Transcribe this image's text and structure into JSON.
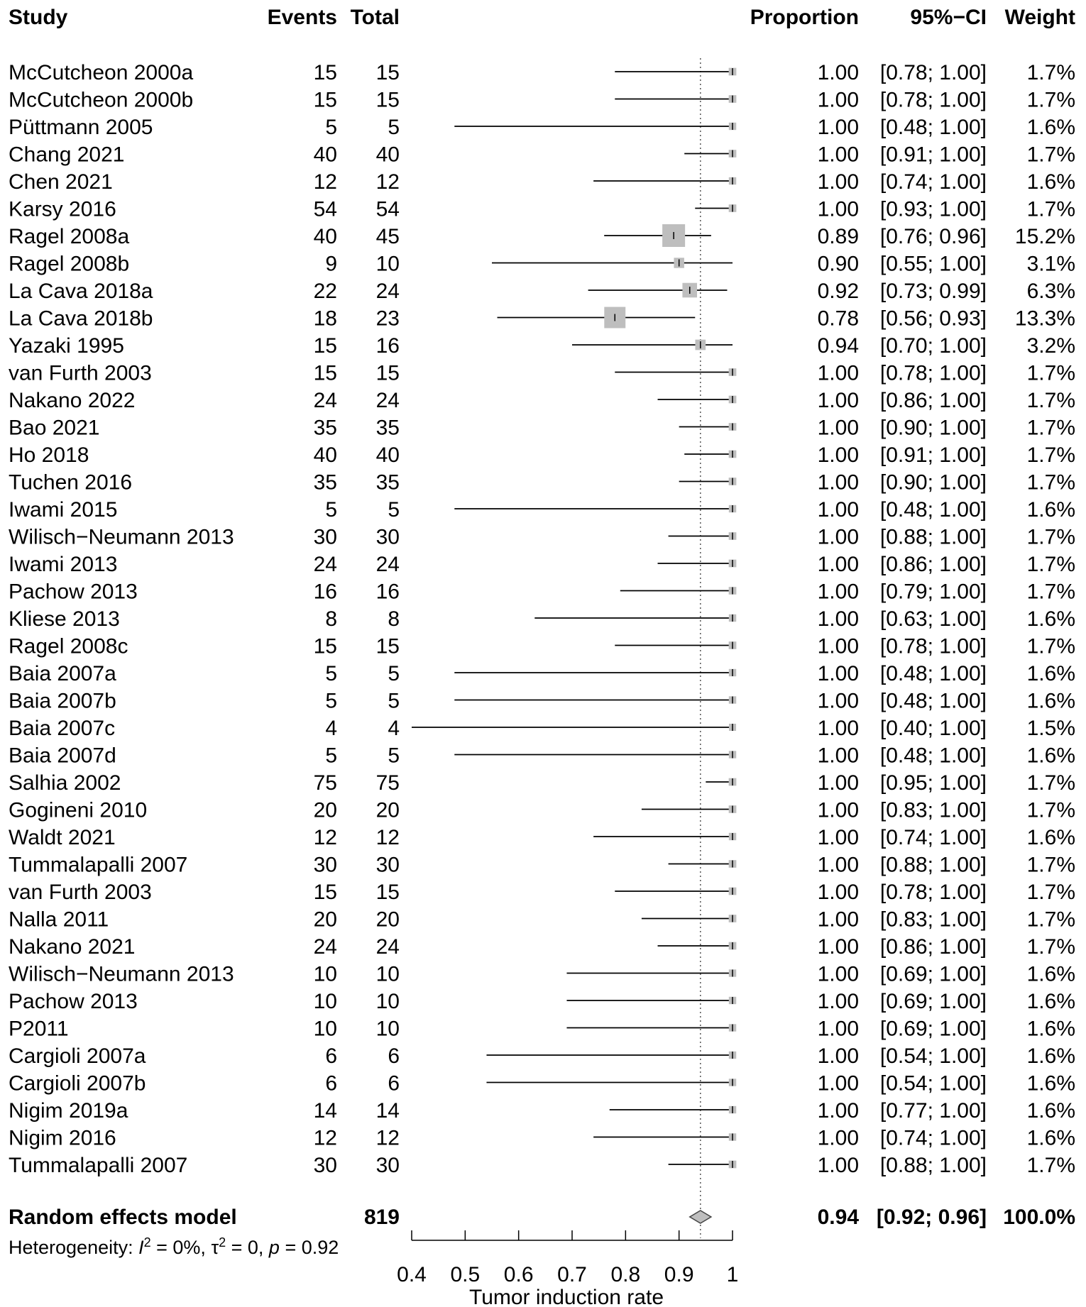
{
  "chart_data": {
    "type": "forest",
    "headers": {
      "study": "Study",
      "events": "Events",
      "total": "Total",
      "proportion": "Proportion",
      "ci": "95%−CI",
      "weight": "Weight"
    },
    "studies": [
      {
        "name": "McCutcheon 2000a",
        "events": 15,
        "total": 15,
        "prop": 1.0,
        "lower": 0.78,
        "upper": 1.0,
        "prop_text": "1.00",
        "ci_text": "[0.78; 1.00]",
        "weight_text": "1.7%",
        "weight": 1.7
      },
      {
        "name": "McCutcheon 2000b",
        "events": 15,
        "total": 15,
        "prop": 1.0,
        "lower": 0.78,
        "upper": 1.0,
        "prop_text": "1.00",
        "ci_text": "[0.78; 1.00]",
        "weight_text": "1.7%",
        "weight": 1.7
      },
      {
        "name": "Püttmann 2005",
        "events": 5,
        "total": 5,
        "prop": 1.0,
        "lower": 0.48,
        "upper": 1.0,
        "prop_text": "1.00",
        "ci_text": "[0.48; 1.00]",
        "weight_text": "1.6%",
        "weight": 1.6
      },
      {
        "name": "Chang 2021",
        "events": 40,
        "total": 40,
        "prop": 1.0,
        "lower": 0.91,
        "upper": 1.0,
        "prop_text": "1.00",
        "ci_text": "[0.91; 1.00]",
        "weight_text": "1.7%",
        "weight": 1.7
      },
      {
        "name": "Chen 2021",
        "events": 12,
        "total": 12,
        "prop": 1.0,
        "lower": 0.74,
        "upper": 1.0,
        "prop_text": "1.00",
        "ci_text": "[0.74; 1.00]",
        "weight_text": "1.6%",
        "weight": 1.6
      },
      {
        "name": "Karsy 2016",
        "events": 54,
        "total": 54,
        "prop": 1.0,
        "lower": 0.93,
        "upper": 1.0,
        "prop_text": "1.00",
        "ci_text": "[0.93; 1.00]",
        "weight_text": "1.7%",
        "weight": 1.7
      },
      {
        "name": "Ragel 2008a",
        "events": 40,
        "total": 45,
        "prop": 0.89,
        "lower": 0.76,
        "upper": 0.96,
        "prop_text": "0.89",
        "ci_text": "[0.76; 0.96]",
        "weight_text": "15.2%",
        "weight": 15.2
      },
      {
        "name": "Ragel 2008b",
        "events": 9,
        "total": 10,
        "prop": 0.9,
        "lower": 0.55,
        "upper": 1.0,
        "prop_text": "0.90",
        "ci_text": "[0.55; 1.00]",
        "weight_text": "3.1%",
        "weight": 3.1
      },
      {
        "name": "La Cava 2018a",
        "events": 22,
        "total": 24,
        "prop": 0.92,
        "lower": 0.73,
        "upper": 0.99,
        "prop_text": "0.92",
        "ci_text": "[0.73; 0.99]",
        "weight_text": "6.3%",
        "weight": 6.3
      },
      {
        "name": "La Cava 2018b",
        "events": 18,
        "total": 23,
        "prop": 0.78,
        "lower": 0.56,
        "upper": 0.93,
        "prop_text": "0.78",
        "ci_text": "[0.56; 0.93]",
        "weight_text": "13.3%",
        "weight": 13.3
      },
      {
        "name": "Yazaki 1995",
        "events": 15,
        "total": 16,
        "prop": 0.94,
        "lower": 0.7,
        "upper": 1.0,
        "prop_text": "0.94",
        "ci_text": "[0.70; 1.00]",
        "weight_text": "3.2%",
        "weight": 3.2
      },
      {
        "name": "van Furth 2003",
        "events": 15,
        "total": 15,
        "prop": 1.0,
        "lower": 0.78,
        "upper": 1.0,
        "prop_text": "1.00",
        "ci_text": "[0.78; 1.00]",
        "weight_text": "1.7%",
        "weight": 1.7
      },
      {
        "name": "Nakano 2022",
        "events": 24,
        "total": 24,
        "prop": 1.0,
        "lower": 0.86,
        "upper": 1.0,
        "prop_text": "1.00",
        "ci_text": "[0.86; 1.00]",
        "weight_text": "1.7%",
        "weight": 1.7
      },
      {
        "name": "Bao 2021",
        "events": 35,
        "total": 35,
        "prop": 1.0,
        "lower": 0.9,
        "upper": 1.0,
        "prop_text": "1.00",
        "ci_text": "[0.90; 1.00]",
        "weight_text": "1.7%",
        "weight": 1.7
      },
      {
        "name": "Ho 2018",
        "events": 40,
        "total": 40,
        "prop": 1.0,
        "lower": 0.91,
        "upper": 1.0,
        "prop_text": "1.00",
        "ci_text": "[0.91; 1.00]",
        "weight_text": "1.7%",
        "weight": 1.7
      },
      {
        "name": "Tuchen 2016",
        "events": 35,
        "total": 35,
        "prop": 1.0,
        "lower": 0.9,
        "upper": 1.0,
        "prop_text": "1.00",
        "ci_text": "[0.90; 1.00]",
        "weight_text": "1.7%",
        "weight": 1.7
      },
      {
        "name": "Iwami 2015",
        "events": 5,
        "total": 5,
        "prop": 1.0,
        "lower": 0.48,
        "upper": 1.0,
        "prop_text": "1.00",
        "ci_text": "[0.48; 1.00]",
        "weight_text": "1.6%",
        "weight": 1.6
      },
      {
        "name": "Wilisch−Neumann 2013",
        "events": 30,
        "total": 30,
        "prop": 1.0,
        "lower": 0.88,
        "upper": 1.0,
        "prop_text": "1.00",
        "ci_text": "[0.88; 1.00]",
        "weight_text": "1.7%",
        "weight": 1.7
      },
      {
        "name": "Iwami 2013",
        "events": 24,
        "total": 24,
        "prop": 1.0,
        "lower": 0.86,
        "upper": 1.0,
        "prop_text": "1.00",
        "ci_text": "[0.86; 1.00]",
        "weight_text": "1.7%",
        "weight": 1.7
      },
      {
        "name": "Pachow 2013",
        "events": 16,
        "total": 16,
        "prop": 1.0,
        "lower": 0.79,
        "upper": 1.0,
        "prop_text": "1.00",
        "ci_text": "[0.79; 1.00]",
        "weight_text": "1.7%",
        "weight": 1.7
      },
      {
        "name": "Kliese 2013",
        "events": 8,
        "total": 8,
        "prop": 1.0,
        "lower": 0.63,
        "upper": 1.0,
        "prop_text": "1.00",
        "ci_text": "[0.63; 1.00]",
        "weight_text": "1.6%",
        "weight": 1.6
      },
      {
        "name": "Ragel 2008c",
        "events": 15,
        "total": 15,
        "prop": 1.0,
        "lower": 0.78,
        "upper": 1.0,
        "prop_text": "1.00",
        "ci_text": "[0.78; 1.00]",
        "weight_text": "1.7%",
        "weight": 1.7
      },
      {
        "name": "Baia 2007a",
        "events": 5,
        "total": 5,
        "prop": 1.0,
        "lower": 0.48,
        "upper": 1.0,
        "prop_text": "1.00",
        "ci_text": "[0.48; 1.00]",
        "weight_text": "1.6%",
        "weight": 1.6
      },
      {
        "name": "Baia 2007b",
        "events": 5,
        "total": 5,
        "prop": 1.0,
        "lower": 0.48,
        "upper": 1.0,
        "prop_text": "1.00",
        "ci_text": "[0.48; 1.00]",
        "weight_text": "1.6%",
        "weight": 1.6
      },
      {
        "name": "Baia 2007c",
        "events": 4,
        "total": 4,
        "prop": 1.0,
        "lower": 0.4,
        "upper": 1.0,
        "prop_text": "1.00",
        "ci_text": "[0.40; 1.00]",
        "weight_text": "1.5%",
        "weight": 1.5
      },
      {
        "name": "Baia 2007d",
        "events": 5,
        "total": 5,
        "prop": 1.0,
        "lower": 0.48,
        "upper": 1.0,
        "prop_text": "1.00",
        "ci_text": "[0.48; 1.00]",
        "weight_text": "1.6%",
        "weight": 1.6
      },
      {
        "name": "Salhia 2002",
        "events": 75,
        "total": 75,
        "prop": 1.0,
        "lower": 0.95,
        "upper": 1.0,
        "prop_text": "1.00",
        "ci_text": "[0.95; 1.00]",
        "weight_text": "1.7%",
        "weight": 1.7
      },
      {
        "name": "Gogineni 2010",
        "events": 20,
        "total": 20,
        "prop": 1.0,
        "lower": 0.83,
        "upper": 1.0,
        "prop_text": "1.00",
        "ci_text": "[0.83; 1.00]",
        "weight_text": "1.7%",
        "weight": 1.7
      },
      {
        "name": "Waldt 2021",
        "events": 12,
        "total": 12,
        "prop": 1.0,
        "lower": 0.74,
        "upper": 1.0,
        "prop_text": "1.00",
        "ci_text": "[0.74; 1.00]",
        "weight_text": "1.6%",
        "weight": 1.6
      },
      {
        "name": "Tummalapalli 2007",
        "events": 30,
        "total": 30,
        "prop": 1.0,
        "lower": 0.88,
        "upper": 1.0,
        "prop_text": "1.00",
        "ci_text": "[0.88; 1.00]",
        "weight_text": "1.7%",
        "weight": 1.7
      },
      {
        "name": "van Furth 2003",
        "events": 15,
        "total": 15,
        "prop": 1.0,
        "lower": 0.78,
        "upper": 1.0,
        "prop_text": "1.00",
        "ci_text": "[0.78; 1.00]",
        "weight_text": "1.7%",
        "weight": 1.7
      },
      {
        "name": "Nalla 2011",
        "events": 20,
        "total": 20,
        "prop": 1.0,
        "lower": 0.83,
        "upper": 1.0,
        "prop_text": "1.00",
        "ci_text": "[0.83; 1.00]",
        "weight_text": "1.7%",
        "weight": 1.7
      },
      {
        "name": "Nakano 2021",
        "events": 24,
        "total": 24,
        "prop": 1.0,
        "lower": 0.86,
        "upper": 1.0,
        "prop_text": "1.00",
        "ci_text": "[0.86; 1.00]",
        "weight_text": "1.7%",
        "weight": 1.7
      },
      {
        "name": "Wilisch−Neumann 2013",
        "events": 10,
        "total": 10,
        "prop": 1.0,
        "lower": 0.69,
        "upper": 1.0,
        "prop_text": "1.00",
        "ci_text": "[0.69; 1.00]",
        "weight_text": "1.6%",
        "weight": 1.6
      },
      {
        "name": "Pachow 2013",
        "events": 10,
        "total": 10,
        "prop": 1.0,
        "lower": 0.69,
        "upper": 1.0,
        "prop_text": "1.00",
        "ci_text": "[0.69; 1.00]",
        "weight_text": "1.6%",
        "weight": 1.6
      },
      {
        "name": "P2011",
        "events": 10,
        "total": 10,
        "prop": 1.0,
        "lower": 0.69,
        "upper": 1.0,
        "prop_text": "1.00",
        "ci_text": "[0.69; 1.00]",
        "weight_text": "1.6%",
        "weight": 1.6
      },
      {
        "name": "Cargioli 2007a",
        "events": 6,
        "total": 6,
        "prop": 1.0,
        "lower": 0.54,
        "upper": 1.0,
        "prop_text": "1.00",
        "ci_text": "[0.54; 1.00]",
        "weight_text": "1.6%",
        "weight": 1.6
      },
      {
        "name": "Cargioli 2007b",
        "events": 6,
        "total": 6,
        "prop": 1.0,
        "lower": 0.54,
        "upper": 1.0,
        "prop_text": "1.00",
        "ci_text": "[0.54; 1.00]",
        "weight_text": "1.6%",
        "weight": 1.6
      },
      {
        "name": "Nigim 2019a",
        "events": 14,
        "total": 14,
        "prop": 1.0,
        "lower": 0.77,
        "upper": 1.0,
        "prop_text": "1.00",
        "ci_text": "[0.77; 1.00]",
        "weight_text": "1.6%",
        "weight": 1.6
      },
      {
        "name": "Nigim 2016",
        "events": 12,
        "total": 12,
        "prop": 1.0,
        "lower": 0.74,
        "upper": 1.0,
        "prop_text": "1.00",
        "ci_text": "[0.74; 1.00]",
        "weight_text": "1.6%",
        "weight": 1.6
      },
      {
        "name": "Tummalapalli 2007",
        "events": 30,
        "total": 30,
        "prop": 1.0,
        "lower": 0.88,
        "upper": 1.0,
        "prop_text": "1.00",
        "ci_text": "[0.88; 1.00]",
        "weight_text": "1.7%",
        "weight": 1.7
      }
    ],
    "pooled": {
      "name": "Random effects model",
      "total": "819",
      "prop": 0.94,
      "lower": 0.92,
      "upper": 0.96,
      "prop_text": "0.94",
      "ci_text": "[0.92; 0.96]",
      "weight_text": "100.0%"
    },
    "heterogeneity": {
      "prefix": "Heterogeneity: ",
      "i2_symbol": "I",
      "i2_text": " = 0%, ",
      "tau_symbol": "τ",
      "tau_text": " = 0, ",
      "p_symbol": "p",
      "p_text": " = 0.92",
      "superscript": "2"
    },
    "x_axis": {
      "label": "Tumor induction rate",
      "ticks": [
        "0.4",
        "0.5",
        "0.6",
        "0.7",
        "0.8",
        "0.9",
        "1"
      ],
      "tick_values": [
        0.4,
        0.5,
        0.6,
        0.7,
        0.8,
        0.9,
        1.0
      ],
      "xlim": [
        0.4,
        1.0
      ]
    },
    "reference_line": 0.94,
    "colors": {
      "box_fill": "#bebebe",
      "diamond_fill": "#bebebe",
      "line": "#000000",
      "reference_line": "#555555"
    }
  }
}
